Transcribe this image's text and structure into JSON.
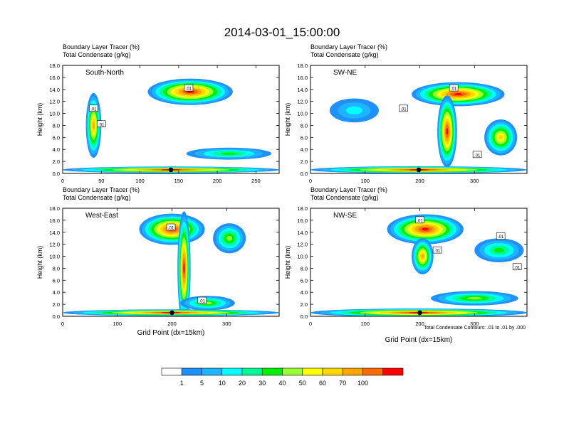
{
  "title": "2014-03-01_15:00:00",
  "colors": {
    "palette": [
      "#ffffff",
      "#1e90ff",
      "#1eb4ff",
      "#00ffff",
      "#00fa9a",
      "#00ee00",
      "#9aff32",
      "#ffff00",
      "#ffd700",
      "#ffa500",
      "#ff6a00",
      "#ff0000"
    ],
    "contour": "#000000",
    "marker": "#000000"
  },
  "colorbar": {
    "labels": [
      "1",
      "5",
      "10",
      "20",
      "30",
      "40",
      "50",
      "60",
      "70",
      "100"
    ]
  },
  "panel_headers": {
    "line1": "Boundary Layer Tracer    (%)",
    "line2": "Total Condensate   (g/kg)"
  },
  "contour_note": "Total Condensate Contours: .01 to .01 by .000",
  "contour_label": ".01",
  "chart_data": [
    {
      "type": "heatmap",
      "name": "South-North",
      "ylabel": "Height (km)",
      "xlabel": "",
      "xlim": [
        0,
        280
      ],
      "ylim": [
        0,
        18
      ],
      "xticks": [
        "0",
        "50",
        "100",
        "150",
        "200",
        "250"
      ],
      "xtick_values": [
        0,
        50,
        100,
        150,
        200,
        250
      ],
      "yticks": [
        "0.0",
        "2.0",
        "4.0",
        "6.0",
        "8.0",
        "10.0",
        "12.0",
        "14.0",
        "16.0",
        "18.0"
      ],
      "marker_x": 140,
      "contour_labels_at": [
        [
          40,
          10.8
        ],
        [
          50,
          8.2
        ],
        [
          163,
          14.2
        ]
      ]
    },
    {
      "type": "heatmap",
      "name": "SW-NE",
      "ylabel": "Height (km)",
      "xlabel": "",
      "xlim": [
        0,
        396
      ],
      "ylim": [
        0,
        18
      ],
      "xticks": [
        "0",
        "100",
        "200",
        "300"
      ],
      "xtick_values": [
        0,
        100,
        200,
        300
      ],
      "yticks": [
        "0.0",
        "2.0",
        "4.0",
        "6.0",
        "8.0",
        "10.0",
        "12.0",
        "14.0",
        "16.0",
        "18.0"
      ],
      "marker_x": 198,
      "contour_labels_at": [
        [
          170,
          10.8
        ],
        [
          262,
          14.2
        ],
        [
          305,
          3.1
        ]
      ]
    },
    {
      "type": "heatmap",
      "name": "West-East",
      "ylabel": "Height (km)",
      "xlabel": "Grid Point (dx=15km)",
      "xlim": [
        0,
        396
      ],
      "ylim": [
        0,
        18
      ],
      "xticks": [
        "0",
        "100",
        "200",
        "300"
      ],
      "xtick_values": [
        0,
        100,
        200,
        300
      ],
      "yticks": [
        "0.0",
        "2.0",
        "4.0",
        "6.0",
        "8.0",
        "10.0",
        "12.0",
        "14.0",
        "16.0",
        "18.0"
      ],
      "marker_x": 200,
      "contour_labels_at": [
        [
          198,
          14.8
        ],
        [
          255,
          2.6
        ]
      ]
    },
    {
      "type": "heatmap",
      "name": "NW-SE",
      "ylabel": "Height (km)",
      "xlabel": "Grid Point (dx=15km)",
      "xlim": [
        0,
        396
      ],
      "ylim": [
        0,
        18
      ],
      "xticks": [
        "0",
        "100",
        "200",
        "300"
      ],
      "xtick_values": [
        0,
        100,
        200,
        300
      ],
      "yticks": [
        "0.0",
        "2.0",
        "4.0",
        "6.0",
        "8.0",
        "10.0",
        "12.0",
        "14.0",
        "16.0",
        "18.0"
      ],
      "marker_x": 200,
      "contour_labels_at": [
        [
          200,
          16.0
        ],
        [
          232,
          11.0
        ],
        [
          348,
          13.3
        ],
        [
          378,
          8.2
        ]
      ]
    }
  ]
}
